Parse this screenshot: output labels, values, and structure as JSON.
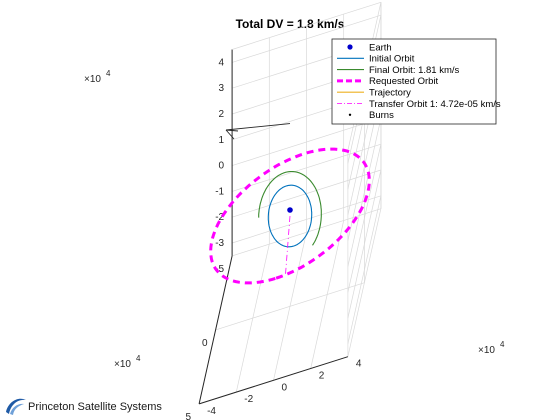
{
  "chart_data": {
    "type": "line",
    "projection": "3d",
    "title": "Total DV = 1.8 km/s",
    "grid": true,
    "legend_position": "top-right",
    "x_axis": {
      "ticks": [
        -5,
        0,
        5
      ],
      "exponent": "×10",
      "exponent_power": "4",
      "range": [
        -5,
        5
      ]
    },
    "y_axis": {
      "ticks": [
        -4,
        -2,
        0,
        2,
        4
      ],
      "exponent": "×10",
      "exponent_power": "4",
      "range": [
        -4,
        4
      ]
    },
    "z_axis": {
      "ticks": [
        -3,
        -2,
        -1,
        0,
        1,
        2,
        3,
        4
      ],
      "exponent": "×10",
      "exponent_power": "4",
      "range": [
        -3.5,
        4.5
      ]
    },
    "legend": [
      {
        "label": "Earth",
        "style": "dot",
        "color": "#0000cc"
      },
      {
        "label": "Initial Orbit",
        "style": "solid",
        "color": "#0072bd"
      },
      {
        "label": "Final Orbit: 1.81 km/s",
        "style": "solid",
        "color": "#3a8a2e"
      },
      {
        "label": "Requested Orbit",
        "style": "dashed-thick",
        "color": "#ff00ff"
      },
      {
        "label": "Trajectory",
        "style": "solid",
        "color": "#edb120"
      },
      {
        "label": "Transfer Orbit 1: 4.72e-05 km/s",
        "style": "dashdot",
        "color": "#ff00ff"
      },
      {
        "label": "Burns",
        "style": "point",
        "color": "#000000"
      }
    ],
    "series": [
      {
        "name": "Requested Orbit",
        "kind": "circle",
        "center": [
          0,
          0,
          0
        ],
        "radius": 4.2,
        "normal": [
          0,
          0,
          1
        ]
      },
      {
        "name": "Initial Orbit",
        "kind": "circle",
        "center": [
          0,
          0,
          0
        ],
        "radius": 0.9,
        "tilt_deg": 60
      },
      {
        "name": "Final Orbit: 1.81 km/s",
        "kind": "arc",
        "center": [
          0,
          0,
          0
        ],
        "radius": 1.3,
        "tilt_deg": 60
      },
      {
        "name": "Transfer Orbit 1: 4.72e-05 km/s",
        "kind": "line",
        "from": [
          0,
          0,
          0
        ],
        "to": [
          4.2,
          0.5,
          0
        ]
      },
      {
        "name": "Earth",
        "kind": "point",
        "position": [
          0,
          0,
          0
        ]
      }
    ],
    "burns": [
      {
        "label": "burn-vector",
        "from": [
          0,
          0,
          1.8
        ],
        "to": [
          -3.5,
          -2,
          3.4
        ]
      }
    ]
  },
  "watermark": {
    "text": "Princeton Satellite Systems",
    "logo_color": "#1f5aa6"
  }
}
